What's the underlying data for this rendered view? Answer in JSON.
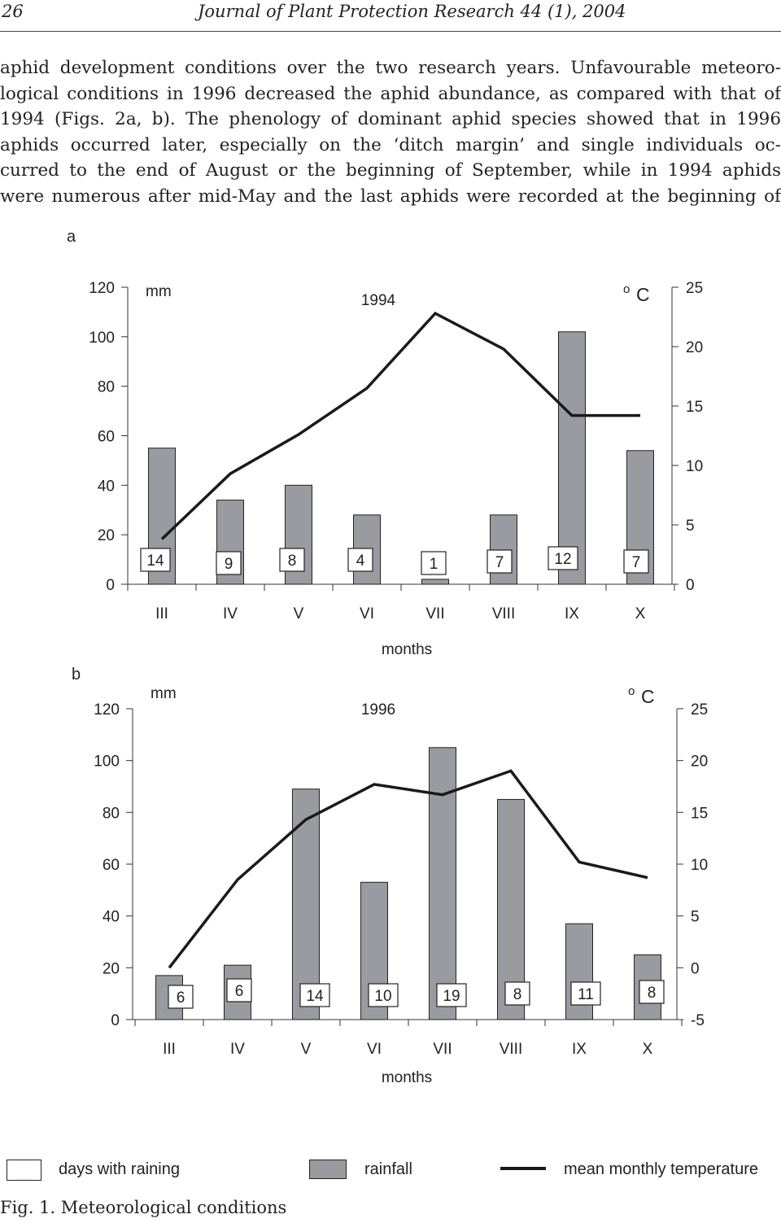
{
  "header": {
    "page_number": "26",
    "journal": "Journal of Plant Protection Research 44 (1), 2004"
  },
  "body_lines": [
    "aphid development conditions over the two research years. Unfavourable meteoro-",
    "logical conditions in 1996 decreased the aphid abundance, as compared with that of",
    "1994 (Figs. 2a, b). The phenology of dominant aphid species showed that in 1996",
    "aphids occurred later, especially on the ‘ditch margin’ and single individuals oc-",
    "curred to the end of August or the beginning of September, while in 1994 aphids",
    "were numerous after mid-May and the last aphids were recorded at the beginning of"
  ],
  "chart_data": [
    {
      "panel": "a",
      "type": "bar",
      "title": "1994",
      "left_unit": "mm",
      "right_unit": "oC",
      "xlabel": "months",
      "categories": [
        "III",
        "IV",
        "V",
        "VI",
        "VII",
        "VIII",
        "IX",
        "X"
      ],
      "y_left_ticks": [
        0,
        20,
        40,
        60,
        80,
        100,
        120
      ],
      "y_right_ticks": [
        0,
        5,
        10,
        15,
        20,
        25
      ],
      "ylim_left": [
        0,
        120
      ],
      "ylim_right": [
        0,
        25
      ],
      "rainfall": [
        55,
        34,
        40,
        28,
        2,
        28,
        102,
        54
      ],
      "temperature": [
        3.8,
        9.3,
        12.6,
        16.5,
        22.8,
        19.8,
        14.2,
        14.2
      ],
      "rain_days": [
        14,
        9,
        8,
        4,
        1,
        7,
        12,
        7
      ]
    },
    {
      "panel": "b",
      "type": "bar",
      "title": "1996",
      "left_unit": "mm",
      "right_unit": "oC",
      "xlabel": "months",
      "categories": [
        "III",
        "IV",
        "V",
        "VI",
        "VII",
        "VIII",
        "IX",
        "X"
      ],
      "y_left_ticks": [
        0,
        20,
        40,
        60,
        80,
        100,
        120
      ],
      "y_right_ticks": [
        -5,
        0,
        5,
        10,
        15,
        20,
        25
      ],
      "ylim_left": [
        0,
        120
      ],
      "ylim_right": [
        -5,
        25
      ],
      "rainfall": [
        17,
        21,
        89,
        53,
        105,
        85,
        37,
        25
      ],
      "temperature": [
        0,
        8.5,
        14.3,
        17.7,
        16.7,
        19,
        10.2,
        8.7
      ],
      "rain_days": [
        6,
        6,
        14,
        10,
        19,
        8,
        11,
        8
      ]
    }
  ],
  "legend": {
    "rain_days_label": "days with raining",
    "rainfall_label": "rainfall",
    "temperature_label": "mean monthly temperature"
  },
  "caption": "Fig. 1. Meteorological conditions",
  "colors": {
    "bar_fill": "#9a9ba0",
    "bar_stroke": "#222222",
    "line": "#1a1a1a"
  }
}
